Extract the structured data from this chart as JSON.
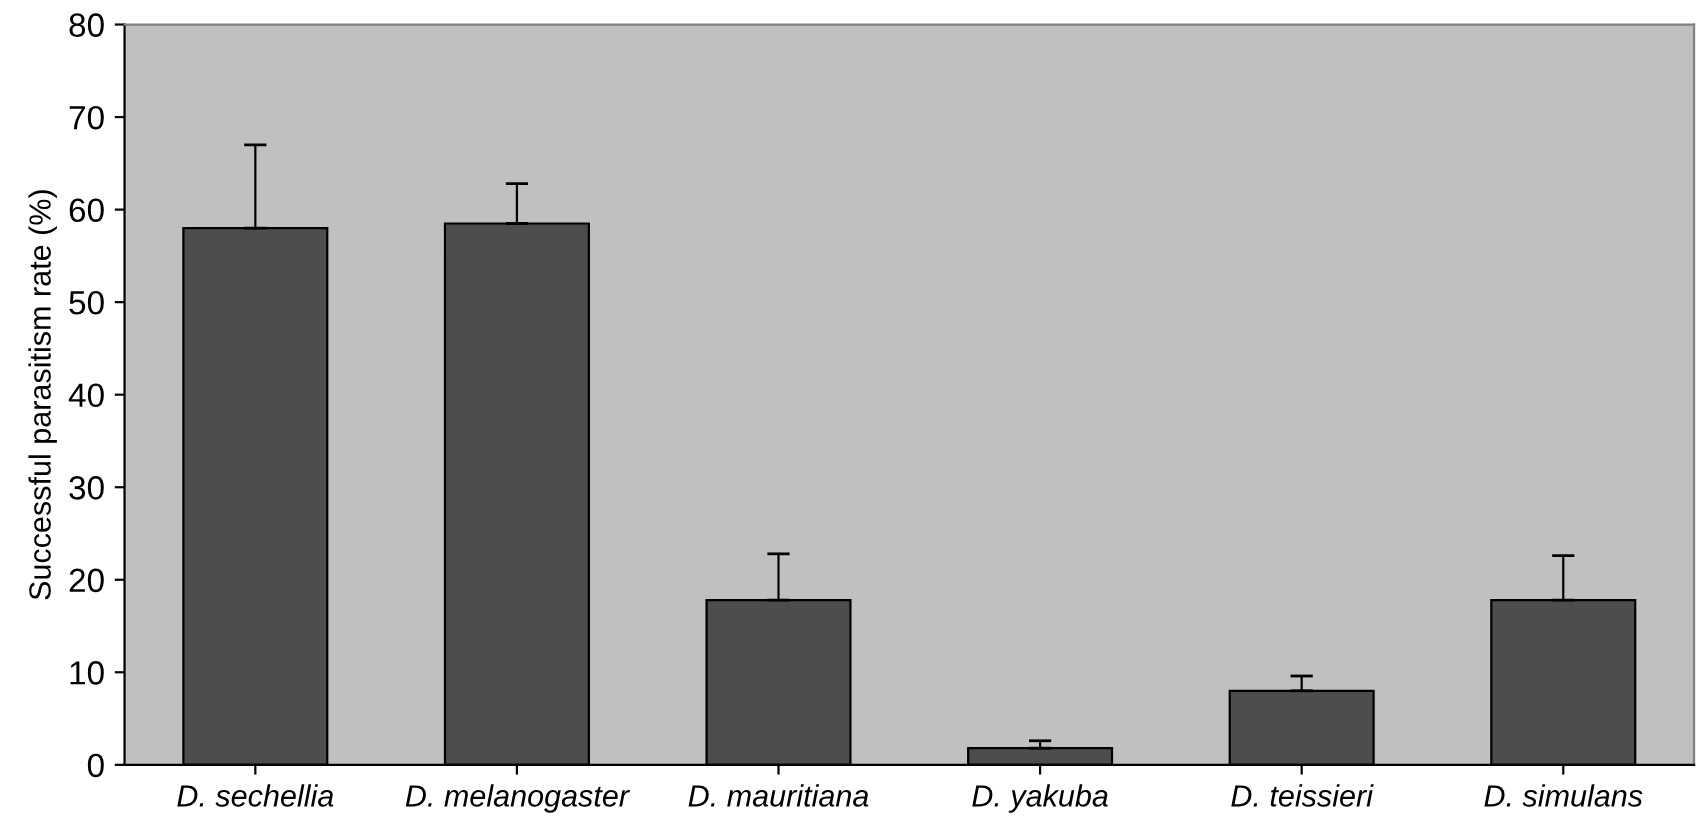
{
  "chart_data": {
    "type": "bar",
    "ylabel": "Successful parasitism rate (%)",
    "categories": [
      "D. sechellia",
      "D. melanogaster",
      "D. mauritiana",
      "D. yakuba",
      "D. teissieri",
      "D. simulans"
    ],
    "values": [
      58,
      58.5,
      17.8,
      1.8,
      8,
      17.8
    ],
    "errors": [
      [
        58,
        67
      ],
      [
        58.5,
        62.8
      ],
      [
        17.8,
        22.8
      ],
      [
        1.8,
        2.6
      ],
      [
        8,
        9.6
      ],
      [
        17.8,
        22.6
      ]
    ],
    "color": "#4d4d4d",
    "ylim": [
      0,
      80
    ],
    "yticks": [
      0,
      10,
      20,
      30,
      40,
      50,
      60,
      70,
      80
    ],
    "grid": false,
    "legend": false
  }
}
